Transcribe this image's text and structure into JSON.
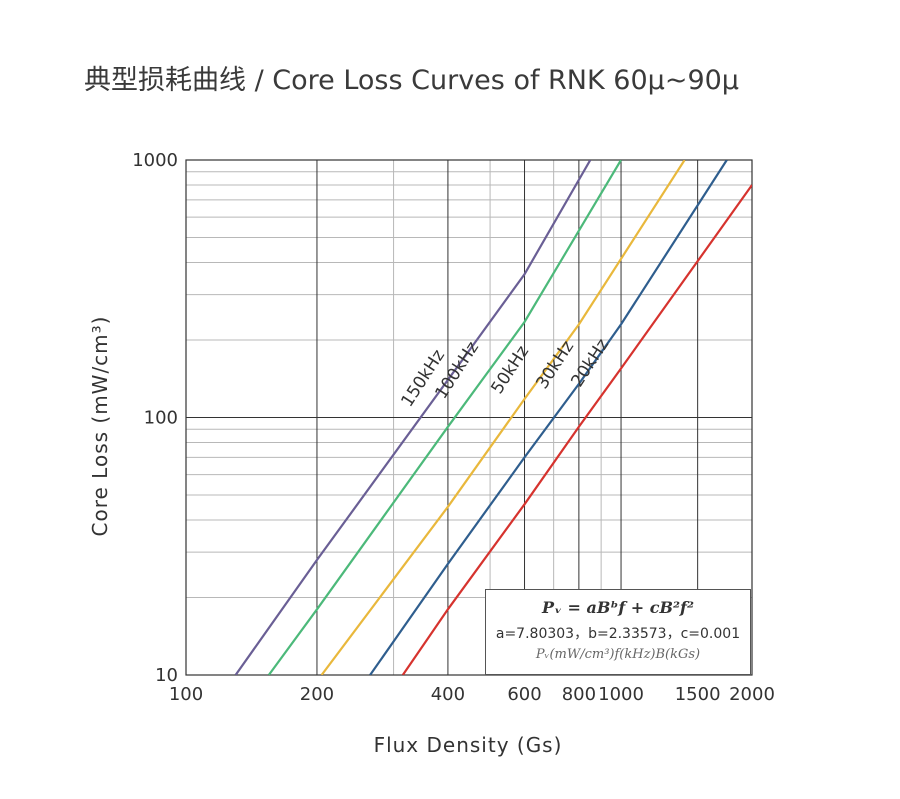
{
  "title": "典型损耗曲线 / Core Loss Curves of RNK 60μ~90μ",
  "chart_data": {
    "type": "line",
    "xlabel": "Flux Density (Gs)",
    "ylabel": "Core Loss (mW/cm³)",
    "x_scale": "log",
    "y_scale": "log",
    "xlim": [
      100,
      2000
    ],
    "ylim": [
      10,
      1000
    ],
    "x_ticks": [
      "100",
      "200",
      "400",
      "600",
      "800",
      "1000",
      "1500",
      "2000"
    ],
    "x_tick_values": [
      100,
      200,
      400,
      600,
      800,
      1000,
      1500,
      2000
    ],
    "y_ticks": [
      "10",
      "100",
      "1000"
    ],
    "y_tick_values": [
      10,
      100,
      1000
    ],
    "grid": true,
    "series": [
      {
        "name": "150kHz",
        "color": "#6a5f95",
        "x": [
          130,
          200,
          400,
          600,
          850
        ],
        "y": [
          10,
          28,
          140,
          360,
          1000
        ]
      },
      {
        "name": "100kHz",
        "color": "#4cb97a",
        "x": [
          155,
          200,
          400,
          600,
          1000
        ],
        "y": [
          10,
          18,
          92,
          235,
          1000
        ]
      },
      {
        "name": "50kHz",
        "color": "#e9b83c",
        "x": [
          205,
          400,
          600,
          800,
          1400
        ],
        "y": [
          10,
          45,
          118,
          230,
          1000
        ]
      },
      {
        "name": "30kHz",
        "color": "#2f5e8e",
        "x": [
          265,
          400,
          600,
          800,
          1000,
          1750
        ],
        "y": [
          10,
          27,
          70,
          135,
          230,
          1000
        ]
      },
      {
        "name": "20kHz",
        "color": "#d6332e",
        "x": [
          315,
          400,
          600,
          800,
          1000,
          2000
        ],
        "y": [
          10,
          18,
          46,
          92,
          155,
          800
        ]
      }
    ],
    "formula": {
      "main": "Pᵥ = aBᵇf + cB²f²",
      "coefficients": "a=7.80303，b=2.33573，c=0.001",
      "units": "Pᵥ(mW/cm³)f(kHz)B(kGs)"
    }
  }
}
